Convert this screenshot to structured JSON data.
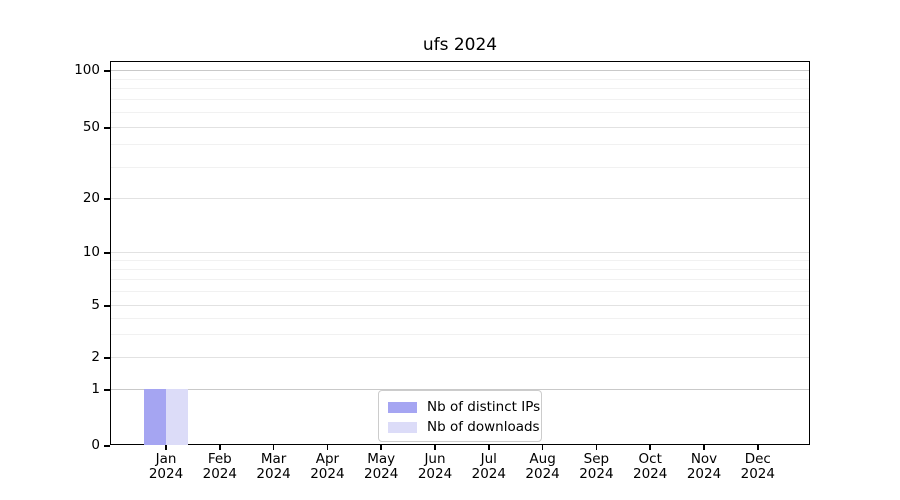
{
  "title": "ufs 2024",
  "chart_data": {
    "type": "bar",
    "title": "ufs 2024",
    "categories": [
      "Jan 2024",
      "Feb 2024",
      "Mar 2024",
      "Apr 2024",
      "May 2024",
      "Jun 2024",
      "Jul 2024",
      "Aug 2024",
      "Sep 2024",
      "Oct 2024",
      "Nov 2024",
      "Dec 2024"
    ],
    "series": [
      {
        "name": "Nb of distinct IPs",
        "color": "#a5a5f2",
        "values": [
          1,
          0,
          0,
          0,
          0,
          0,
          0,
          0,
          0,
          0,
          0,
          0
        ]
      },
      {
        "name": "Nb of downloads",
        "color": "#dcdcf8",
        "values": [
          1,
          0,
          0,
          0,
          0,
          0,
          0,
          0,
          0,
          0,
          0,
          0
        ]
      }
    ],
    "xlabel": "",
    "ylabel": "",
    "yscale": "log-like (0, 1, 2, 5, 10, 20, 50, 100)",
    "y_ticks": [
      0,
      1,
      2,
      5,
      10,
      20,
      50,
      100
    ],
    "y_minor_ticks": [
      3,
      4,
      6,
      7,
      8,
      9,
      30,
      40,
      60,
      70,
      80,
      90
    ],
    "ylim": [
      0,
      120
    ],
    "grid": true,
    "legend_position": "bottom-center-inside"
  }
}
